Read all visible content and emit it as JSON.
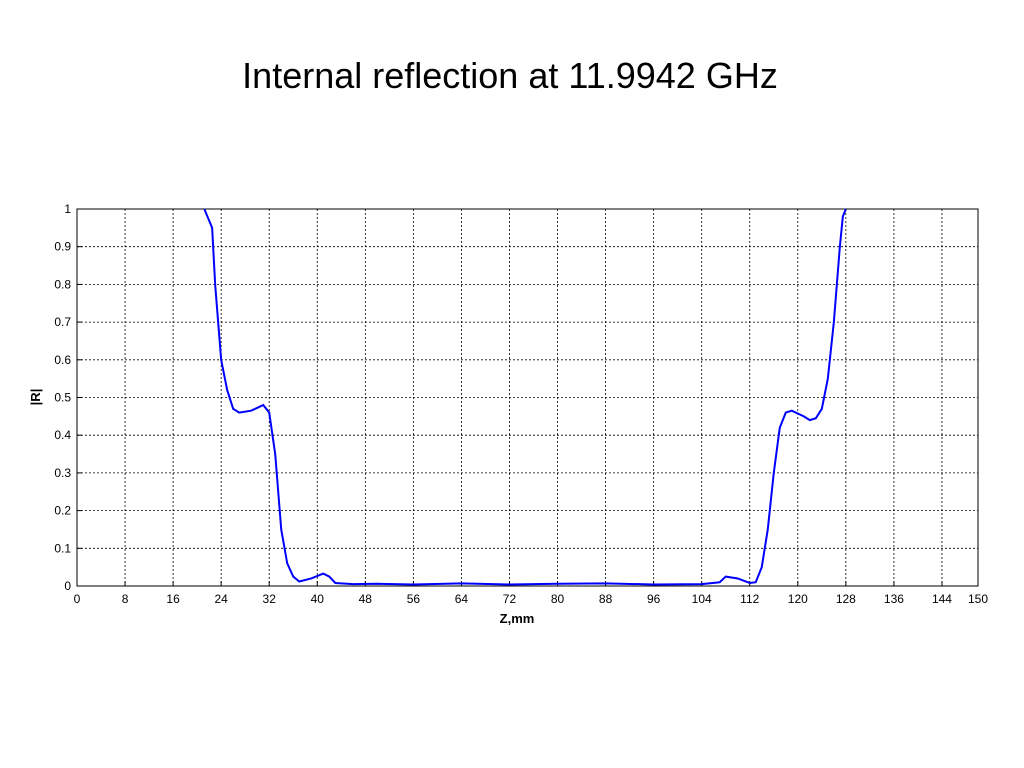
{
  "chart_data": {
    "type": "line",
    "title": "Internal reflection at 11.9942 GHz",
    "x_label": "Z,mm",
    "y_label": "|R|",
    "x": [
      21.2,
      22.5,
      23,
      24,
      25,
      26,
      27,
      29,
      31,
      32,
      33,
      34,
      35,
      36,
      37,
      39,
      41,
      42,
      43,
      46,
      50,
      56,
      64,
      72,
      80,
      88,
      96,
      104,
      107,
      108,
      110,
      112,
      113,
      114,
      115,
      116,
      117,
      118,
      119,
      121,
      122,
      123,
      124,
      125,
      126,
      127,
      127.5,
      128
    ],
    "series": [
      {
        "color": "#0000ff",
        "values": [
          1,
          0.95,
          0.8,
          0.6,
          0.52,
          0.47,
          0.46,
          0.465,
          0.48,
          0.46,
          0.35,
          0.15,
          0.06,
          0.025,
          0.012,
          0.02,
          0.033,
          0.025,
          0.008,
          0.005,
          0.006,
          0.004,
          0.007,
          0.004,
          0.006,
          0.007,
          0.004,
          0.005,
          0.01,
          0.025,
          0.02,
          0.008,
          0.01,
          0.05,
          0.15,
          0.3,
          0.42,
          0.46,
          0.465,
          0.45,
          0.44,
          0.445,
          0.47,
          0.55,
          0.7,
          0.9,
          0.98,
          1
        ]
      }
    ],
    "xlim": [
      0,
      150
    ],
    "xticks": [
      0,
      8,
      16,
      24,
      32,
      40,
      48,
      56,
      64,
      72,
      80,
      88,
      96,
      104,
      112,
      120,
      128,
      136,
      144,
      150
    ],
    "ylim": [
      0,
      1
    ],
    "yticks": [
      0,
      0.1,
      0.2,
      0.3,
      0.4,
      0.5,
      0.6,
      0.7,
      0.8,
      0.9,
      1
    ],
    "grid": true
  }
}
